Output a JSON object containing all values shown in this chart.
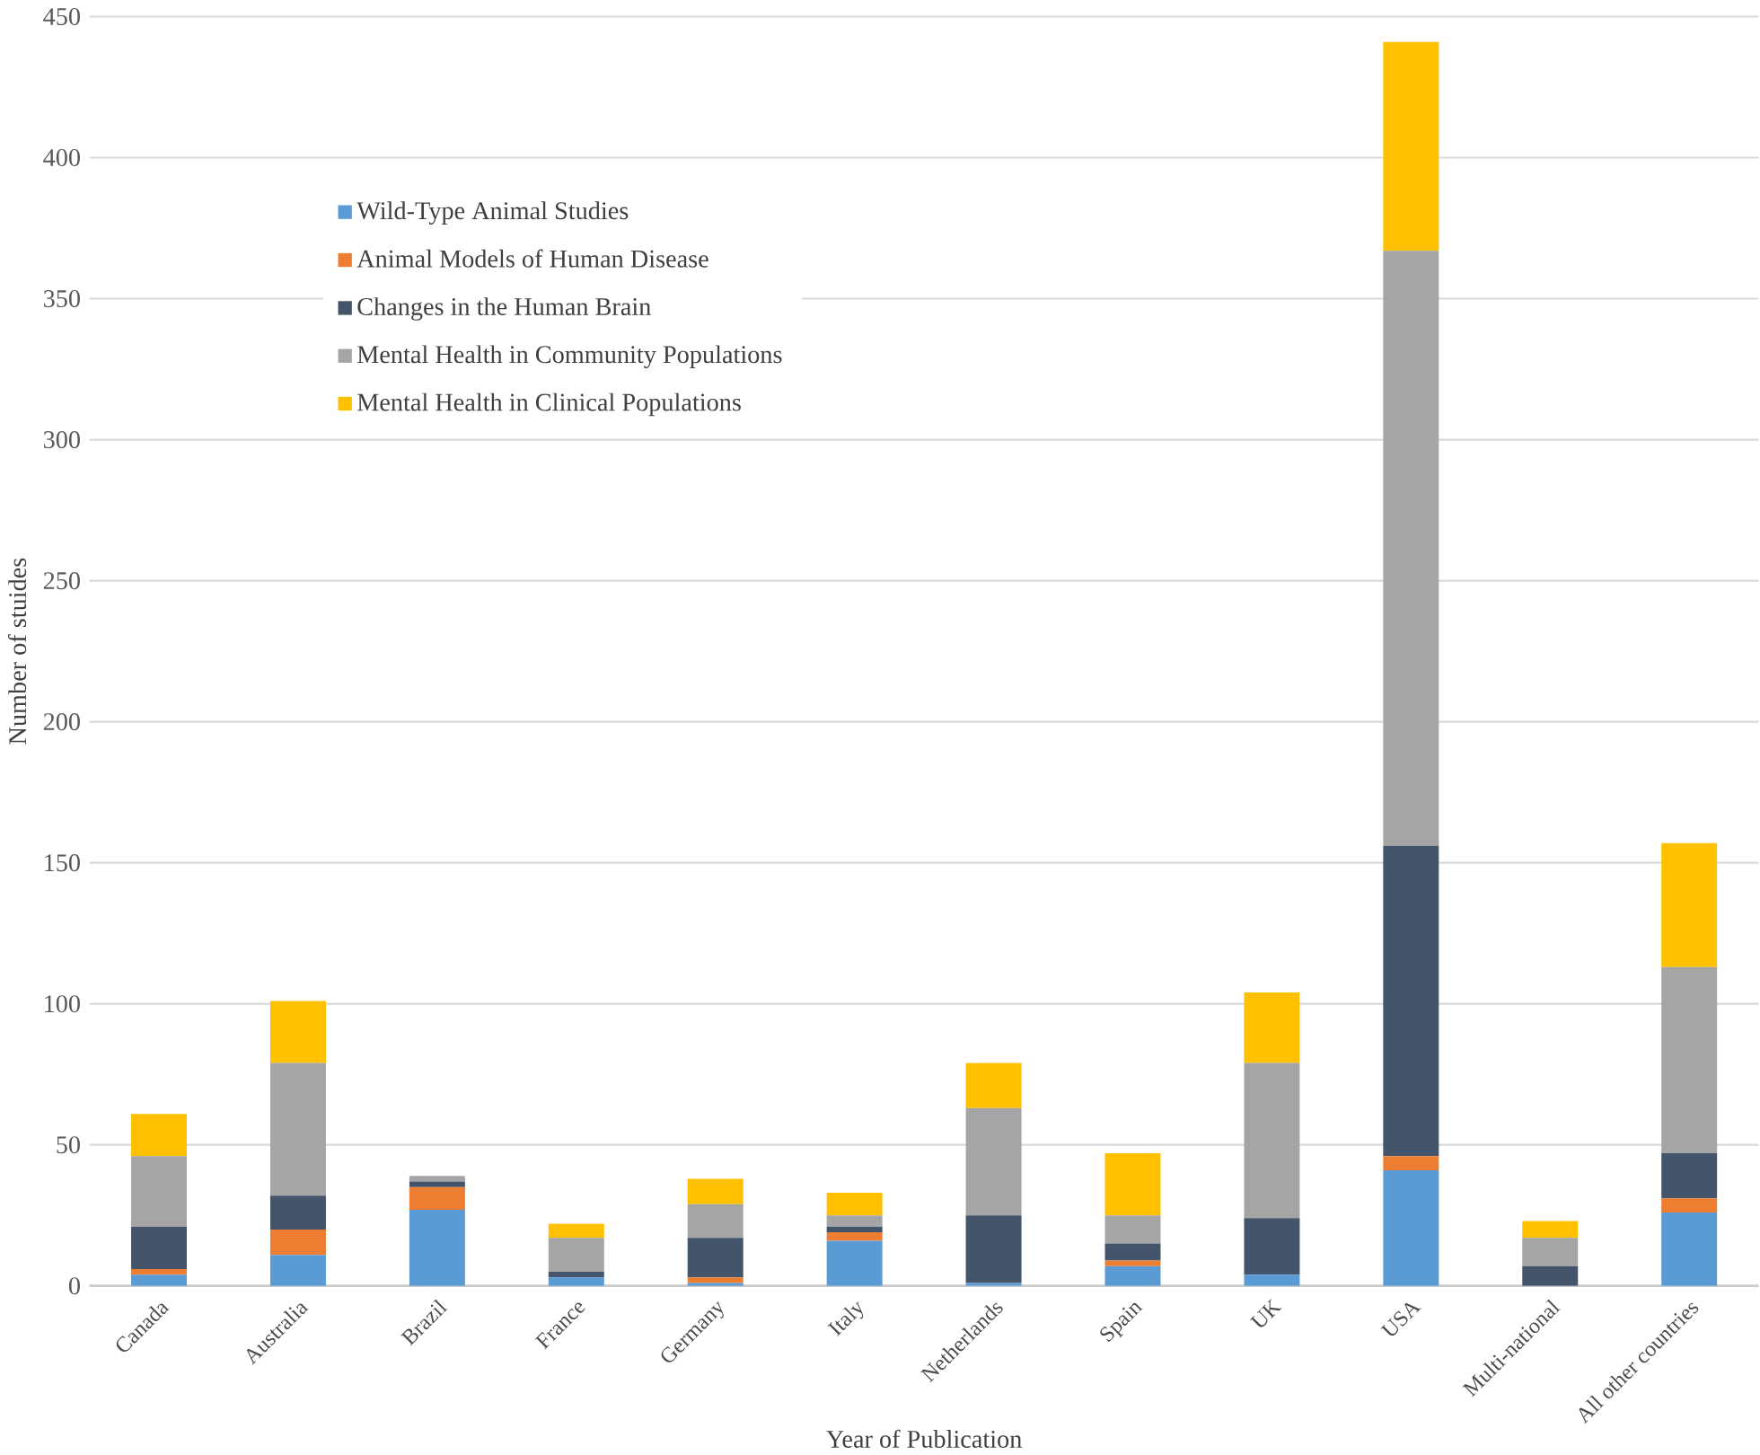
{
  "chart_data": {
    "type": "bar",
    "stacked": true,
    "xlabel": "Year of Publication",
    "ylabel": "Number of stuides",
    "categories": [
      "Canada",
      "Australia",
      "Brazil",
      "France",
      "Germany",
      "Italy",
      "Netherlands",
      "Spain",
      "UK",
      "USA",
      "Multi-national",
      "All other countries"
    ],
    "series": [
      {
        "name": "Wild-Type Animal Studies",
        "color": "#5b9bd5",
        "values": [
          4,
          11,
          27,
          3,
          1,
          16,
          1,
          7,
          4,
          41,
          0,
          26
        ]
      },
      {
        "name": "Animal Models of Human Disease",
        "color": "#ed7d31",
        "values": [
          2,
          9,
          8,
          0,
          2,
          3,
          0,
          2,
          0,
          5,
          0,
          5
        ]
      },
      {
        "name": "Changes in the Human Brain",
        "color": "#44546a",
        "values": [
          15,
          12,
          2,
          2,
          14,
          2,
          24,
          6,
          20,
          110,
          7,
          16
        ]
      },
      {
        "name": "Mental Health in Community Populations",
        "color": "#a5a5a5",
        "values": [
          25,
          47,
          2,
          12,
          12,
          4,
          38,
          10,
          55,
          211,
          10,
          66
        ]
      },
      {
        "name": "Mental Health in Clinical Populations",
        "color": "#ffc000",
        "values": [
          15,
          22,
          0,
          5,
          9,
          8,
          16,
          22,
          25,
          74,
          6,
          44
        ]
      }
    ],
    "ylim": [
      0,
      450
    ],
    "yticks": [
      0,
      50,
      100,
      150,
      200,
      250,
      300,
      350,
      400,
      450
    ],
    "grid": "y",
    "legend": "top left"
  }
}
